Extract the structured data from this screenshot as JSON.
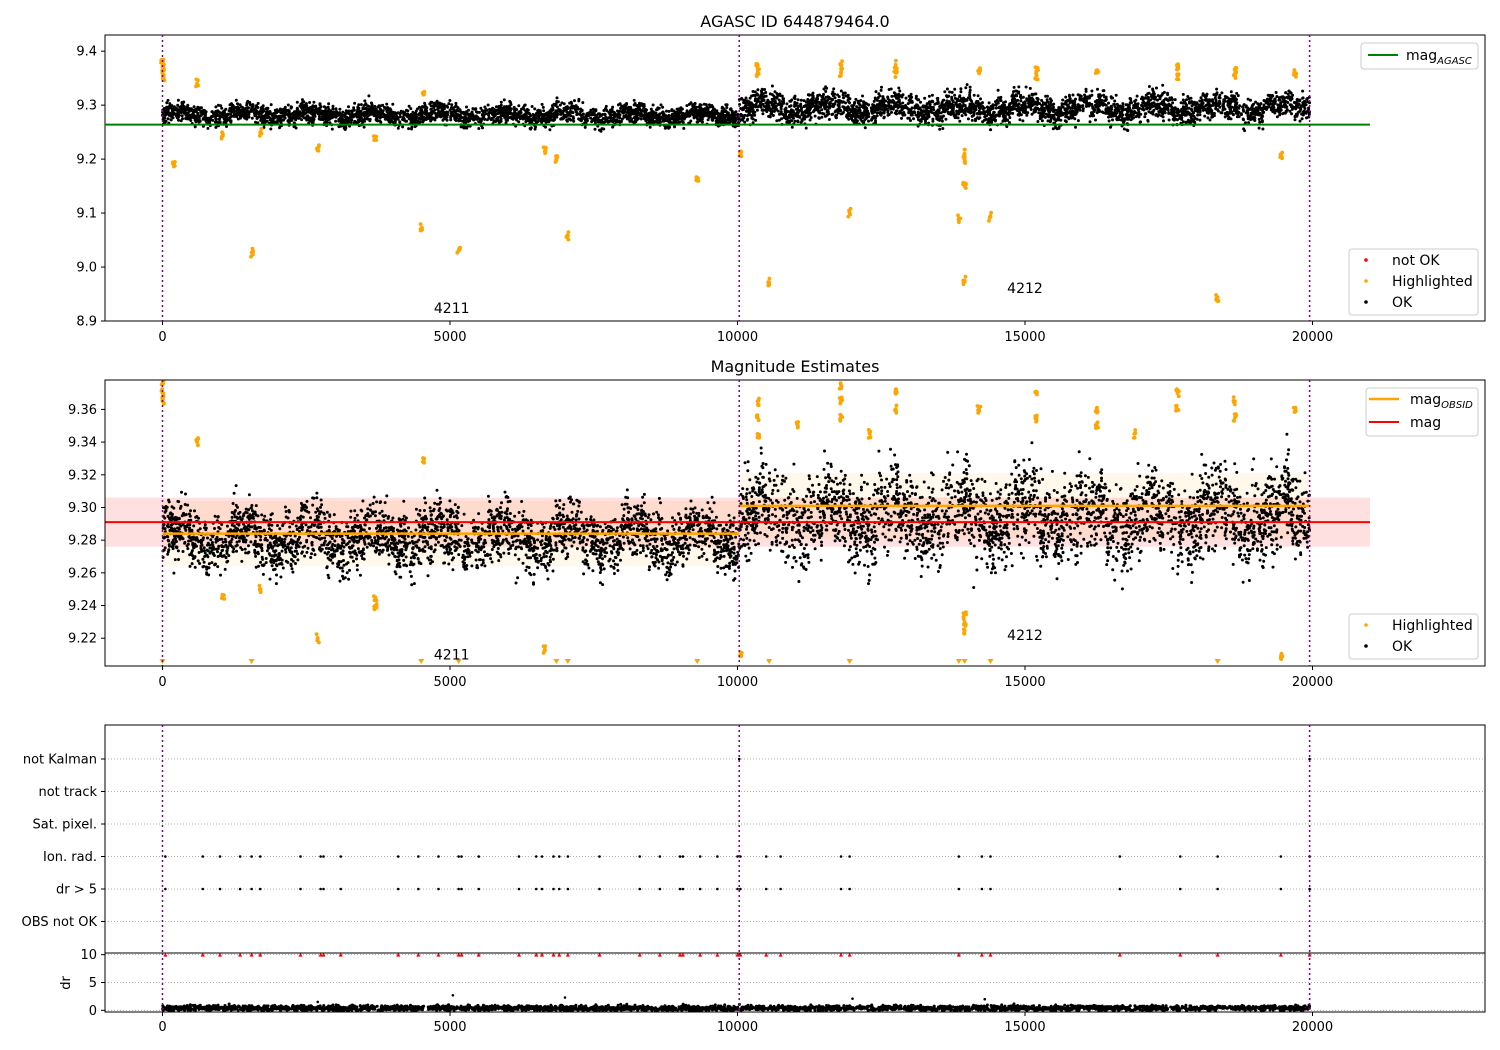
{
  "chart_data": [
    {
      "type": "scatter",
      "title": "AGASC ID 644879464.0",
      "xlim": [
        -1000,
        23000
      ],
      "ylim": [
        8.9,
        9.43
      ],
      "xticks": [
        0,
        5000,
        10000,
        15000,
        20000
      ],
      "yticks": [
        8.9,
        9.0,
        9.1,
        9.2,
        9.3,
        9.4
      ],
      "xtick_labels": [
        "0",
        "5000",
        "10000",
        "15000",
        "20000"
      ],
      "ytick_labels": [
        "8.9",
        "9.0",
        "9.1",
        "9.2",
        "9.3",
        "9.4"
      ],
      "obsid_boundaries": [
        0,
        10030,
        19950
      ],
      "obsid_labels": [
        {
          "text": "4211",
          "x": 5030,
          "y": 8.915
        },
        {
          "text": "4212",
          "x": 15000,
          "y": 8.952
        }
      ],
      "mag_agasc": 9.264,
      "mag_agasc_x": [
        -1000,
        21000
      ],
      "series": [
        {
          "name": "OK",
          "color": "#000000",
          "segments": [
            {
              "x": [
                0,
                10030
              ],
              "center": 9.282,
              "spread": 0.012
            },
            {
              "x": [
                10030,
                19950
              ],
              "center": 9.295,
              "spread": 0.017
            }
          ]
        },
        {
          "name": "Highlighted",
          "color": "#ffa500",
          "points": [
            [
              0,
              9.38
            ],
            [
              0,
              9.37
            ],
            [
              0,
              9.36
            ],
            [
              15,
              9.35
            ],
            [
              200,
              9.19
            ],
            [
              600,
              9.34
            ],
            [
              1050,
              9.245
            ],
            [
              1550,
              9.027
            ],
            [
              1700,
              9.25
            ],
            [
              2700,
              9.22
            ],
            [
              3700,
              9.24
            ],
            [
              4500,
              9.072
            ],
            [
              4550,
              9.32
            ],
            [
              5150,
              9.03
            ],
            [
              6650,
              9.215
            ],
            [
              6850,
              9.198
            ],
            [
              7050,
              9.058
            ],
            [
              9300,
              9.16
            ],
            [
              10050,
              9.21
            ],
            [
              10550,
              8.972
            ],
            [
              11950,
              9.1
            ],
            [
              13850,
              9.09
            ],
            [
              13950,
              9.15
            ],
            [
              13950,
              8.975
            ],
            [
              13950,
              9.2
            ],
            [
              13950,
              9.21
            ],
            [
              14400,
              9.093
            ],
            [
              18350,
              8.944
            ],
            [
              19450,
              9.208
            ],
            [
              19700,
              9.36
            ],
            [
              10350,
              9.37
            ],
            [
              10350,
              9.36
            ],
            [
              11800,
              9.375
            ],
            [
              11800,
              9.36
            ],
            [
              12750,
              9.375
            ],
            [
              12750,
              9.36
            ],
            [
              14200,
              9.365
            ],
            [
              15200,
              9.37
            ],
            [
              15200,
              9.355
            ],
            [
              16250,
              9.365
            ],
            [
              17650,
              9.37
            ],
            [
              17650,
              9.355
            ],
            [
              18650,
              9.365
            ],
            [
              18650,
              9.355
            ]
          ]
        },
        {
          "name": "not OK",
          "color": "#ff0000",
          "points": []
        }
      ],
      "legend": [
        {
          "label_main": "mag",
          "label_sub": "AGASC",
          "style": "line",
          "color": "#008000",
          "position": "top-right"
        },
        {
          "label": "not OK",
          "style": "marker",
          "color": "#ff0000",
          "position": "bottom-right"
        },
        {
          "label": "Highlighted",
          "style": "marker",
          "color": "#ffa500",
          "position": "bottom-right"
        },
        {
          "label": "OK",
          "style": "marker",
          "color": "#000000",
          "position": "bottom-right"
        }
      ]
    },
    {
      "type": "scatter",
      "title": "Magnitude Estimates",
      "xlim": [
        -1000,
        23000
      ],
      "ylim": [
        9.203,
        9.378
      ],
      "xticks": [
        0,
        5000,
        10000,
        15000,
        20000
      ],
      "yticks": [
        9.22,
        9.24,
        9.26,
        9.28,
        9.3,
        9.32,
        9.34,
        9.36
      ],
      "xtick_labels": [
        "0",
        "5000",
        "10000",
        "15000",
        "20000"
      ],
      "ytick_labels": [
        "9.22",
        "9.24",
        "9.26",
        "9.28",
        "9.30",
        "9.32",
        "9.34",
        "9.36"
      ],
      "obsid_boundaries": [
        0,
        10030,
        19950
      ],
      "obsid_labels": [
        {
          "text": "4211",
          "x": 5030,
          "y": 9.207
        },
        {
          "text": "4212",
          "x": 15000,
          "y": 9.219
        }
      ],
      "mag": 9.291,
      "mag_band": [
        9.276,
        9.306
      ],
      "mag_x": [
        -1000,
        21000
      ],
      "mag_obsid": [
        {
          "x": [
            0,
            10030
          ],
          "value": 9.284
        },
        {
          "x": [
            10030,
            19950
          ],
          "value": 9.301
        }
      ],
      "lower_limit_markers_x": [
        0,
        1550,
        4500,
        5150,
        6850,
        7050,
        9300,
        10550,
        11950,
        13850,
        13950,
        14400,
        18350
      ],
      "series": [
        {
          "name": "OK",
          "color": "#000000",
          "segments": [
            {
              "x": [
                0,
                10030
              ],
              "center": 9.282,
              "spread": 0.012
            },
            {
              "x": [
                10030,
                19950
              ],
              "center": 9.295,
              "spread": 0.017
            }
          ]
        },
        {
          "name": "Highlighted",
          "color": "#ffa500",
          "points": [
            [
              0,
              9.376
            ],
            [
              0,
              9.37
            ],
            [
              0,
              9.365
            ],
            [
              600,
              9.34
            ],
            [
              1050,
              9.245
            ],
            [
              1700,
              9.25
            ],
            [
              2700,
              9.22
            ],
            [
              3700,
              9.24
            ],
            [
              3700,
              9.245
            ],
            [
              4550,
              9.33
            ],
            [
              6650,
              9.213
            ],
            [
              10050,
              9.21
            ],
            [
              13950,
              9.23
            ],
            [
              13950,
              9.225
            ],
            [
              13950,
              9.235
            ],
            [
              19450,
              9.209
            ],
            [
              19700,
              9.36
            ],
            [
              10350,
              9.365
            ],
            [
              10350,
              9.355
            ],
            [
              10350,
              9.345
            ],
            [
              11800,
              9.375
            ],
            [
              11800,
              9.365
            ],
            [
              11800,
              9.355
            ],
            [
              12750,
              9.372
            ],
            [
              12750,
              9.36
            ],
            [
              14200,
              9.36
            ],
            [
              15200,
              9.37
            ],
            [
              15200,
              9.355
            ],
            [
              16250,
              9.36
            ],
            [
              16250,
              9.35
            ],
            [
              17650,
              9.37
            ],
            [
              17650,
              9.36
            ],
            [
              18650,
              9.365
            ],
            [
              18650,
              9.355
            ],
            [
              11050,
              9.35
            ],
            [
              12300,
              9.345
            ],
            [
              16900,
              9.345
            ]
          ]
        }
      ],
      "legend": [
        {
          "label_main": "mag",
          "label_sub": "OBSID",
          "style": "line",
          "color": "#ffa500",
          "position": "top-right"
        },
        {
          "label": "mag",
          "style": "line",
          "color": "#ff0000",
          "position": "top-right"
        },
        {
          "label": "Highlighted",
          "style": "marker",
          "color": "#ffa500",
          "position": "bottom-right"
        },
        {
          "label": "OK",
          "style": "marker",
          "color": "#000000",
          "position": "bottom-right"
        }
      ]
    },
    {
      "type": "scatter",
      "title": "",
      "xlim": [
        -1000,
        23000
      ],
      "categories": [
        "not Kalman",
        "not track",
        "Sat. pixel.",
        "Ion. rad.",
        "dr > 5",
        "OBS not OK"
      ],
      "flag_x": [
        50,
        700,
        1000,
        1350,
        1550,
        1700,
        2400,
        2750,
        2800,
        3100,
        4100,
        4450,
        4800,
        5150,
        5200,
        5500,
        6200,
        6500,
        6600,
        6800,
        6900,
        7050,
        7600,
        8300,
        8650,
        9000,
        9050,
        9350,
        9650,
        10000,
        10050,
        10500,
        10750,
        11800,
        11950,
        13850,
        14250,
        14400,
        16650,
        17700,
        18350,
        19450,
        19950
      ],
      "flag_rows": [
        "Ion. rad.",
        "dr > 5"
      ],
      "not_kalman_x": [
        10030,
        19950
      ],
      "dr": {
        "ylim": [
          -0.3,
          10.3
        ],
        "yticks": [
          0,
          5,
          10
        ],
        "ylabel": "dr",
        "xticks": [
          0,
          5000,
          10000,
          15000,
          20000
        ],
        "xtick_labels": [
          "0",
          "5000",
          "10000",
          "15000",
          "20000"
        ],
        "clip_value": 10,
        "baseline_center": 0.4,
        "baseline_spread": 0.25,
        "outliers": [
          [
            5050,
            2.7
          ],
          [
            7000,
            2.3
          ],
          [
            12000,
            2.1
          ],
          [
            14300,
            2.0
          ],
          [
            2700,
            1.5
          ]
        ]
      },
      "obsid_boundaries": [
        0,
        10030,
        19950
      ]
    }
  ]
}
